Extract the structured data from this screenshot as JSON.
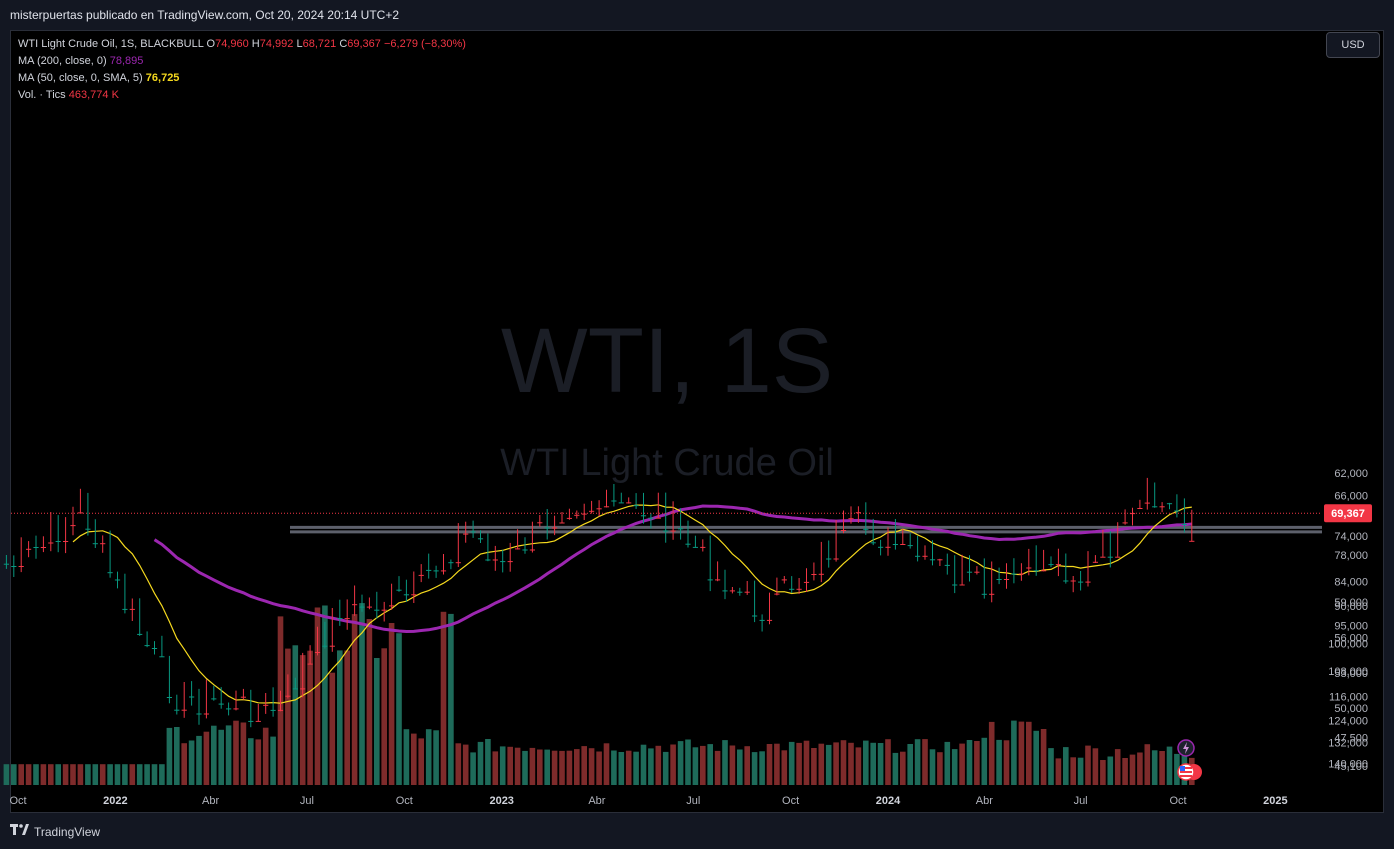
{
  "header": {
    "publisher_text": "misterpuertas publicado en TradingView.com, Oct 20, 2024 20:14 UTC+2"
  },
  "legend": {
    "symbol": "WTI Light Crude Oil, 1S, BLACKBULL",
    "o_label": "O",
    "o_value": "74,960",
    "h_label": "H",
    "h_value": "74,992",
    "l_label": "L",
    "l_value": "68,721",
    "c_label": "C",
    "c_value": "69,367",
    "change": "−6,279 (−8,30%)",
    "ma200_label": "MA (200, close, 0)",
    "ma200_value": "78,895",
    "ma50_label": "MA (50, close, 0, SMA, 5)",
    "ma50_value": "76,725",
    "vol_label": "Vol. · Tics",
    "vol_value": "463,774 K"
  },
  "currency": "USD",
  "watermark": {
    "line1": "WTI, 1S",
    "line2": "WTI Light Crude Oil"
  },
  "footer": {
    "logo_text": "TradingView"
  },
  "colors": {
    "background": "#000000",
    "up": "#089981",
    "down": "#f23645",
    "ma50": "#f5d91e",
    "ma200": "#9c27b0",
    "vol_up": "#1e6b5a",
    "vol_down": "#7e2b2b",
    "level_line": "#5d606b"
  },
  "chart_data": {
    "type": "candlestick",
    "x_ticks": [
      "Oct",
      "2022",
      "Abr",
      "Jul",
      "Oct",
      "2023",
      "Abr",
      "Jul",
      "Oct",
      "2024",
      "Abr",
      "Jul",
      "Oct",
      "2025"
    ],
    "y_ticks": [
      "140,000",
      "132,000",
      "124,000",
      "116,000",
      "108,000",
      "100,000",
      "95,000",
      "90,000",
      "84,000",
      "78,000",
      "74,000",
      "70,000",
      "66,000",
      "62,000",
      "59,000",
      "56,000",
      "53,000",
      "50,000",
      "47,500",
      "45,100"
    ],
    "y_scale": "log",
    "last_price": "69,367",
    "horizontal_levels": [
      73.1,
      72.2
    ],
    "price_trend_key": [
      {
        "date": "2021-10",
        "price": 80
      },
      {
        "date": "2021-12",
        "price": 68
      },
      {
        "date": "2022-03",
        "price": 116
      },
      {
        "date": "2022-06",
        "price": 120
      },
      {
        "date": "2022-08",
        "price": 90
      },
      {
        "date": "2022-10",
        "price": 88
      },
      {
        "date": "2022-12",
        "price": 72
      },
      {
        "date": "2023-01",
        "price": 80
      },
      {
        "date": "2023-03",
        "price": 67
      },
      {
        "date": "2023-06",
        "price": 69
      },
      {
        "date": "2023-09",
        "price": 91
      },
      {
        "date": "2023-12",
        "price": 71
      },
      {
        "date": "2024-04",
        "price": 86
      },
      {
        "date": "2024-06",
        "price": 78
      },
      {
        "date": "2024-07",
        "price": 83
      },
      {
        "date": "2024-09",
        "price": 67
      },
      {
        "date": "2024-10",
        "price": 69.37
      }
    ],
    "series": [
      {
        "name": "MA (200, close, 0)",
        "last_value": 78.895
      },
      {
        "name": "MA (50, close, 0, SMA, 5)",
        "last_value": 76.725
      },
      {
        "name": "Vol. · Tics",
        "last_value": "463,774 K"
      }
    ]
  }
}
